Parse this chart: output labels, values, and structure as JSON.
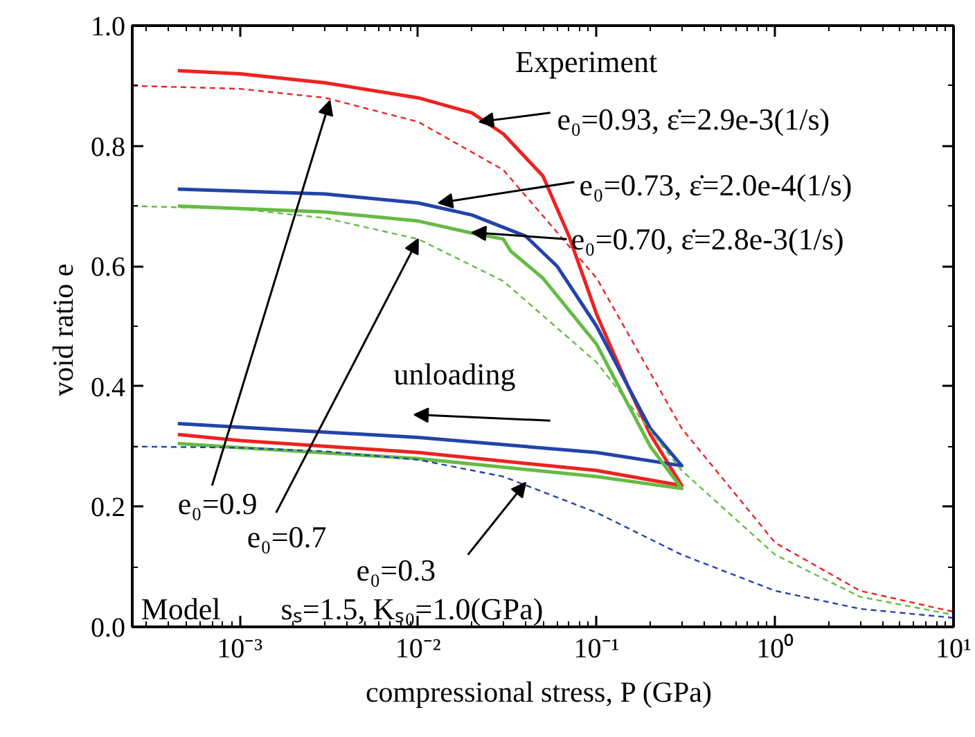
{
  "chart_data": {
    "type": "line",
    "xlabel": "compressional stress,  P (GPa)",
    "ylabel": "void ratio  e",
    "log": "x",
    "grid": false,
    "xlim": [
      0.00025,
      10
    ],
    "ylim": [
      0,
      1
    ],
    "xticks": [
      {
        "value": 0.001,
        "label": "10⁻³"
      },
      {
        "value": 0.01,
        "label": "10⁻²"
      },
      {
        "value": 0.1,
        "label": "10⁻¹"
      },
      {
        "value": 1,
        "label": "10⁰"
      },
      {
        "value": 10,
        "label": "10¹"
      }
    ],
    "yticks": [
      {
        "value": 0,
        "label": "0.0"
      },
      {
        "value": 0.2,
        "label": "0.2"
      },
      {
        "value": 0.4,
        "label": "0.4"
      },
      {
        "value": 0.6,
        "label": "0.6"
      },
      {
        "value": 0.8,
        "label": "0.8"
      },
      {
        "value": 1,
        "label": "1.0"
      }
    ],
    "series": [
      {
        "color": "#ee2222",
        "line_style": "solid",
        "x": [
          0.00045,
          0.001,
          0.003,
          0.01,
          0.02,
          0.03,
          0.05,
          0.07,
          0.1,
          0.15,
          0.2,
          0.3,
          0.1,
          0.01,
          0.001,
          0.00045
        ],
        "values": [
          0.925,
          0.92,
          0.905,
          0.88,
          0.855,
          0.82,
          0.75,
          0.65,
          0.52,
          0.4,
          0.32,
          0.235,
          0.26,
          0.29,
          0.31,
          0.32
        ]
      },
      {
        "color": "#2244aa",
        "line_style": "solid",
        "x": [
          0.00045,
          0.003,
          0.01,
          0.02,
          0.04,
          0.06,
          0.1,
          0.15,
          0.2,
          0.3,
          0.1,
          0.01,
          0.001,
          0.00045
        ],
        "values": [
          0.728,
          0.72,
          0.705,
          0.685,
          0.65,
          0.6,
          0.5,
          0.4,
          0.33,
          0.268,
          0.29,
          0.315,
          0.332,
          0.338
        ]
      },
      {
        "color": "#66bb44",
        "line_style": "solid",
        "x": [
          0.00045,
          0.003,
          0.01,
          0.02,
          0.03,
          0.033,
          0.05,
          0.1,
          0.15,
          0.2,
          0.3,
          0.1,
          0.01,
          0.001,
          0.00045
        ],
        "values": [
          0.7,
          0.69,
          0.675,
          0.655,
          0.645,
          0.625,
          0.58,
          0.47,
          0.37,
          0.3,
          0.23,
          0.25,
          0.28,
          0.298,
          0.305
        ]
      },
      {
        "color": "#ee2222",
        "line_style": "dashed",
        "x": [
          0.00025,
          0.001,
          0.003,
          0.01,
          0.03,
          0.1,
          0.3,
          1,
          3,
          10
        ],
        "values": [
          0.9,
          0.895,
          0.88,
          0.84,
          0.76,
          0.58,
          0.33,
          0.14,
          0.06,
          0.025
        ]
      },
      {
        "color": "#66bb44",
        "line_style": "dashed",
        "x": [
          0.00025,
          0.001,
          0.003,
          0.01,
          0.03,
          0.1,
          0.3,
          1,
          3,
          10
        ],
        "values": [
          0.7,
          0.695,
          0.68,
          0.645,
          0.575,
          0.44,
          0.26,
          0.12,
          0.05,
          0.02
        ]
      },
      {
        "color": "#2244aa",
        "line_style": "dashed",
        "x": [
          0.00025,
          0.001,
          0.003,
          0.01,
          0.03,
          0.1,
          0.3,
          1,
          3,
          10
        ],
        "values": [
          0.3,
          0.298,
          0.292,
          0.278,
          0.25,
          0.19,
          0.12,
          0.06,
          0.03,
          0.015
        ]
      }
    ],
    "annotations": [
      "Experiment",
      {
        "text": "e₀=0.93, ε̇=2.9e-3(1/s)",
        "x": 0.022,
        "y": 0.84
      },
      {
        "text": "e₀=0.73, ε̇=2.0e-4(1/s)",
        "x": 0.013,
        "y": 0.705
      },
      {
        "text": "e₀=0.70, ε̇=2.8e-3(1/s)",
        "x": 0.02,
        "y": 0.656
      },
      {
        "text": "e₀=0.9",
        "x": 0.0032,
        "y": 0.875
      },
      {
        "text": "e₀=0.7",
        "x": 0.01,
        "y": 0.645
      },
      {
        "text": "e₀=0.3",
        "x": 0.04,
        "y": 0.24
      },
      "unloading",
      "Model",
      "sₛ=1.5, Kₛ₀=1.0(GPa)"
    ]
  }
}
